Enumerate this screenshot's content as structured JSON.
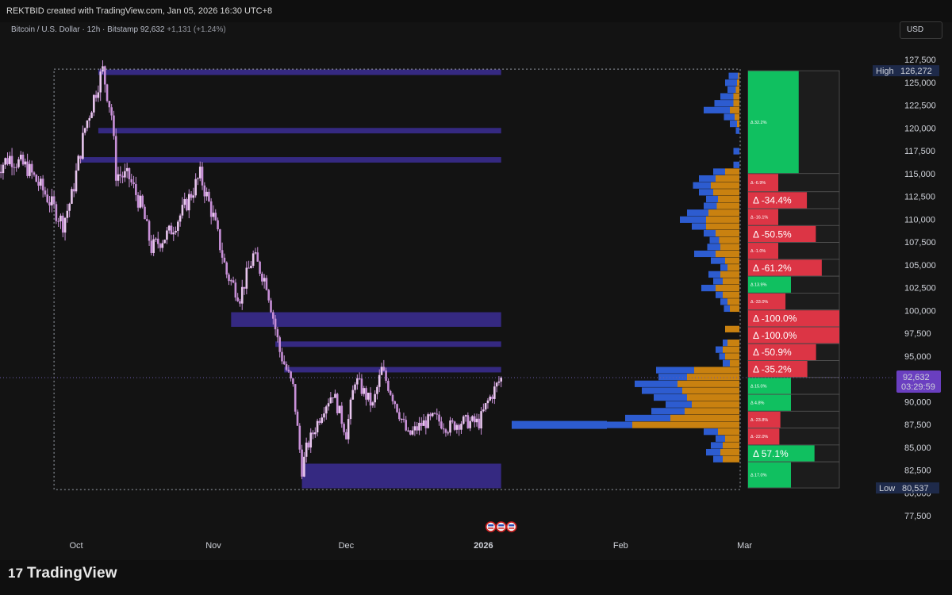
{
  "header": {
    "credit": "REKTBID created with TradingView.com, Jan 05, 2026 16:30 UTC+8",
    "symbol": "Bitcoin / U.S. Dollar · 12h · Bitstamp",
    "last": "92,632",
    "change": "+1,131 (+1.24%)",
    "currency_button": "USD"
  },
  "footer": {
    "logo_text": "TradingView"
  },
  "colors": {
    "background": "#131313",
    "candle": "#e8c6ee",
    "candle_wick": "#c890d8",
    "zone": "#3a2c8e",
    "buy_volume": "#2d5cd0",
    "sell_volume": "#c98110",
    "delta_positive": "#10c060",
    "delta_negative": "#dc3545",
    "last_price_label": "#6a3fc0"
  },
  "chart_data": {
    "type": "candlestick",
    "interval": "12h",
    "price_axis": {
      "ticks": [
        127500,
        125000,
        122500,
        120000,
        117500,
        115000,
        112500,
        110000,
        107500,
        105000,
        102500,
        100000,
        97500,
        95000,
        92500,
        90000,
        87500,
        85000,
        82500,
        80000,
        77500
      ],
      "tick_labels": [
        "127,500",
        "125,000",
        "122,500",
        "120,000",
        "117,500",
        "115,000",
        "112,500",
        "110,000",
        "107,500",
        "105,000",
        "102,500",
        "100,000",
        "97,500",
        "95,000",
        "92,500",
        "90,000",
        "87,500",
        "85,000",
        "82,500",
        "80,000",
        "77,500"
      ],
      "high_label": "High",
      "high_value": "126,272",
      "low_label": "Low",
      "low_value": "80,537",
      "last_value": "92,632",
      "countdown": "03:29:59"
    },
    "time_axis": {
      "labels": [
        {
          "text": "Oct",
          "date": "2025-10-01",
          "bold": false
        },
        {
          "text": "Nov",
          "date": "2025-11-01",
          "bold": false
        },
        {
          "text": "Dec",
          "date": "2025-12-01",
          "bold": false
        },
        {
          "text": "2026",
          "date": "2026-01-01",
          "bold": true
        },
        {
          "text": "Feb",
          "date": "2026-02-01",
          "bold": false
        },
        {
          "text": "Mar",
          "date": "2026-03-01",
          "bold": false
        }
      ]
    },
    "price_path": [
      [
        "2025-09-13",
        115500
      ],
      [
        "2025-09-16",
        116800
      ],
      [
        "2025-09-20",
        115600
      ],
      [
        "2025-09-24",
        112800
      ],
      [
        "2025-09-28",
        109500
      ],
      [
        "2025-09-30",
        112500
      ],
      [
        "2025-10-03",
        120000
      ],
      [
        "2025-10-06",
        125000
      ],
      [
        "2025-10-07",
        126272
      ],
      [
        "2025-10-09",
        121500
      ],
      [
        "2025-10-10",
        115000
      ],
      [
        "2025-10-13",
        114500
      ],
      [
        "2025-10-16",
        111000
      ],
      [
        "2025-10-18",
        106800
      ],
      [
        "2025-10-22",
        108500
      ],
      [
        "2025-10-25",
        110800
      ],
      [
        "2025-10-29",
        114800
      ],
      [
        "2025-11-01",
        110200
      ],
      [
        "2025-11-04",
        104000
      ],
      [
        "2025-11-07",
        101500
      ],
      [
        "2025-11-10",
        106000
      ],
      [
        "2025-11-13",
        103000
      ],
      [
        "2025-11-16",
        95500
      ],
      [
        "2025-11-19",
        91500
      ],
      [
        "2025-11-21",
        82500
      ],
      [
        "2025-11-22",
        84800
      ],
      [
        "2025-11-26",
        89500
      ],
      [
        "2025-11-28",
        91000
      ],
      [
        "2025-12-01",
        86500
      ],
      [
        "2025-12-03",
        92500
      ],
      [
        "2025-12-07",
        89500
      ],
      [
        "2025-12-09",
        93500
      ],
      [
        "2025-12-12",
        90000
      ],
      [
        "2025-12-15",
        86200
      ],
      [
        "2025-12-18",
        87500
      ],
      [
        "2025-12-21",
        88200
      ],
      [
        "2025-12-24",
        87200
      ],
      [
        "2025-12-27",
        87800
      ],
      [
        "2025-12-31",
        87700
      ],
      [
        "2026-01-02",
        90000
      ],
      [
        "2026-01-05",
        92632
      ]
    ],
    "zones": [
      {
        "from": "2025-10-06",
        "low": 125800,
        "high": 126400
      },
      {
        "from": "2025-10-06",
        "low": 119400,
        "high": 120000
      },
      {
        "from": "2025-10-02",
        "low": 116200,
        "high": 116800
      },
      {
        "from": "2025-11-05",
        "low": 98200,
        "high": 99800
      },
      {
        "from": "2025-11-15",
        "low": 96000,
        "high": 96600
      },
      {
        "from": "2025-11-17",
        "low": 93200,
        "high": 93800
      },
      {
        "from": "2025-11-21",
        "low": 80500,
        "high": 83200
      }
    ],
    "range_box": {
      "from": "2025-09-26",
      "to": "2026-02-28",
      "low": 80537,
      "high": 126272
    },
    "volume_profile": [
      {
        "price": 125700,
        "buy": 0.08,
        "sell": 0.01
      },
      {
        "price": 124950,
        "buy": 0.1,
        "sell": 0.02
      },
      {
        "price": 124200,
        "buy": 0.07,
        "sell": 0.03
      },
      {
        "price": 123450,
        "buy": 0.11,
        "sell": 0.05
      },
      {
        "price": 122700,
        "buy": 0.16,
        "sell": 0.05
      },
      {
        "price": 121950,
        "buy": 0.22,
        "sell": 0.08
      },
      {
        "price": 121200,
        "buy": 0.09,
        "sell": 0.04
      },
      {
        "price": 120450,
        "buy": 0.06,
        "sell": 0.02
      },
      {
        "price": 119700,
        "buy": 0.03,
        "sell": 0.0
      },
      {
        "price": 117450,
        "buy": 0.05,
        "sell": 0.0
      },
      {
        "price": 115950,
        "buy": 0.05,
        "sell": 0.0
      },
      {
        "price": 115200,
        "buy": 0.1,
        "sell": 0.12
      },
      {
        "price": 114450,
        "buy": 0.14,
        "sell": 0.2
      },
      {
        "price": 113700,
        "buy": 0.15,
        "sell": 0.24
      },
      {
        "price": 112950,
        "buy": 0.12,
        "sell": 0.22
      },
      {
        "price": 112200,
        "buy": 0.1,
        "sell": 0.18
      },
      {
        "price": 111450,
        "buy": 0.11,
        "sell": 0.19
      },
      {
        "price": 110700,
        "buy": 0.18,
        "sell": 0.26
      },
      {
        "price": 109950,
        "buy": 0.22,
        "sell": 0.28
      },
      {
        "price": 109200,
        "buy": 0.12,
        "sell": 0.28
      },
      {
        "price": 108450,
        "buy": 0.1,
        "sell": 0.2
      },
      {
        "price": 107700,
        "buy": 0.08,
        "sell": 0.17
      },
      {
        "price": 106950,
        "buy": 0.11,
        "sell": 0.16
      },
      {
        "price": 106200,
        "buy": 0.18,
        "sell": 0.2
      },
      {
        "price": 105450,
        "buy": 0.12,
        "sell": 0.12
      },
      {
        "price": 104700,
        "buy": 0.06,
        "sell": 0.1
      },
      {
        "price": 103950,
        "buy": 0.1,
        "sell": 0.16
      },
      {
        "price": 103200,
        "buy": 0.08,
        "sell": 0.14
      },
      {
        "price": 102450,
        "buy": 0.12,
        "sell": 0.2
      },
      {
        "price": 101700,
        "buy": 0.06,
        "sell": 0.14
      },
      {
        "price": 100950,
        "buy": 0.06,
        "sell": 0.1
      },
      {
        "price": 100200,
        "buy": 0.05,
        "sell": 0.08
      },
      {
        "price": 97950,
        "buy": 0.0,
        "sell": 0.12
      },
      {
        "price": 96450,
        "buy": 0.04,
        "sell": 0.1
      },
      {
        "price": 95700,
        "buy": 0.06,
        "sell": 0.14
      },
      {
        "price": 94950,
        "buy": 0.05,
        "sell": 0.12
      },
      {
        "price": 94200,
        "buy": 0.06,
        "sell": 0.08
      },
      {
        "price": 93450,
        "buy": 0.32,
        "sell": 0.38
      },
      {
        "price": 92700,
        "buy": 0.24,
        "sell": 0.44
      },
      {
        "price": 91950,
        "buy": 0.36,
        "sell": 0.52
      },
      {
        "price": 91200,
        "buy": 0.34,
        "sell": 0.48
      },
      {
        "price": 90450,
        "buy": 0.28,
        "sell": 0.44
      },
      {
        "price": 89700,
        "buy": 0.22,
        "sell": 0.4
      },
      {
        "price": 88950,
        "buy": 0.28,
        "sell": 0.46
      },
      {
        "price": 88200,
        "buy": 0.38,
        "sell": 0.58
      },
      {
        "price": 87450,
        "buy": 0.6,
        "sell": 0.9
      },
      {
        "price": 86700,
        "buy": 0.12,
        "sell": 0.18
      },
      {
        "price": 85950,
        "buy": 0.08,
        "sell": 0.12
      },
      {
        "price": 85200,
        "buy": 0.1,
        "sell": 0.14
      },
      {
        "price": 84450,
        "buy": 0.12,
        "sell": 0.16
      },
      {
        "price": 83700,
        "buy": 0.08,
        "sell": 0.14
      }
    ],
    "delta_rows": [
      {
        "low": 115000,
        "high": 126272,
        "delta": 32.2,
        "label": "Δ 32.2%",
        "large": false
      },
      {
        "low": 113000,
        "high": 115000,
        "delta": -6.9,
        "label": "Δ -6.9%",
        "large": false
      },
      {
        "low": 111150,
        "high": 113000,
        "delta": -34.4,
        "label": "Δ -34.4%",
        "large": true
      },
      {
        "low": 109300,
        "high": 111150,
        "delta": -16.1,
        "label": "Δ -16.1%",
        "large": false
      },
      {
        "low": 107450,
        "high": 109300,
        "delta": -50.5,
        "label": "Δ -50.5%",
        "large": true
      },
      {
        "low": 105600,
        "high": 107450,
        "delta": -1.0,
        "label": "Δ -1.0%",
        "large": false
      },
      {
        "low": 103750,
        "high": 105600,
        "delta": -61.2,
        "label": "Δ -61.2%",
        "large": true
      },
      {
        "low": 101900,
        "high": 103750,
        "delta": 13.9,
        "label": "Δ 13.9%",
        "large": false
      },
      {
        "low": 100050,
        "high": 101900,
        "delta": -33.0,
        "label": "Δ -33.0%",
        "large": false
      },
      {
        "low": 98200,
        "high": 100050,
        "delta": -100.0,
        "label": "Δ -100.0%",
        "large": true
      },
      {
        "low": 96350,
        "high": 98200,
        "delta": -100.0,
        "label": "Δ -100.0%",
        "large": true
      },
      {
        "low": 94500,
        "high": 96350,
        "delta": -50.9,
        "label": "Δ -50.9%",
        "large": true
      },
      {
        "low": 92650,
        "high": 94500,
        "delta": -35.2,
        "label": "Δ -35.2%",
        "large": true
      },
      {
        "low": 90800,
        "high": 92650,
        "delta": 15.0,
        "label": "Δ 15.0%",
        "large": false
      },
      {
        "low": 88950,
        "high": 90800,
        "delta": 4.8,
        "label": "Δ 4.8%",
        "large": false
      },
      {
        "low": 87100,
        "high": 88950,
        "delta": -23.8,
        "label": "Δ -23.8%",
        "large": false
      },
      {
        "low": 85250,
        "high": 87100,
        "delta": -22.0,
        "label": "Δ -22.0%",
        "large": false
      },
      {
        "low": 83400,
        "high": 85250,
        "delta": 57.1,
        "label": "Δ 57.1%",
        "large": true
      },
      {
        "low": 80537,
        "high": 83400,
        "delta": 17.0,
        "label": "Δ 17.0%",
        "large": false
      }
    ]
  }
}
